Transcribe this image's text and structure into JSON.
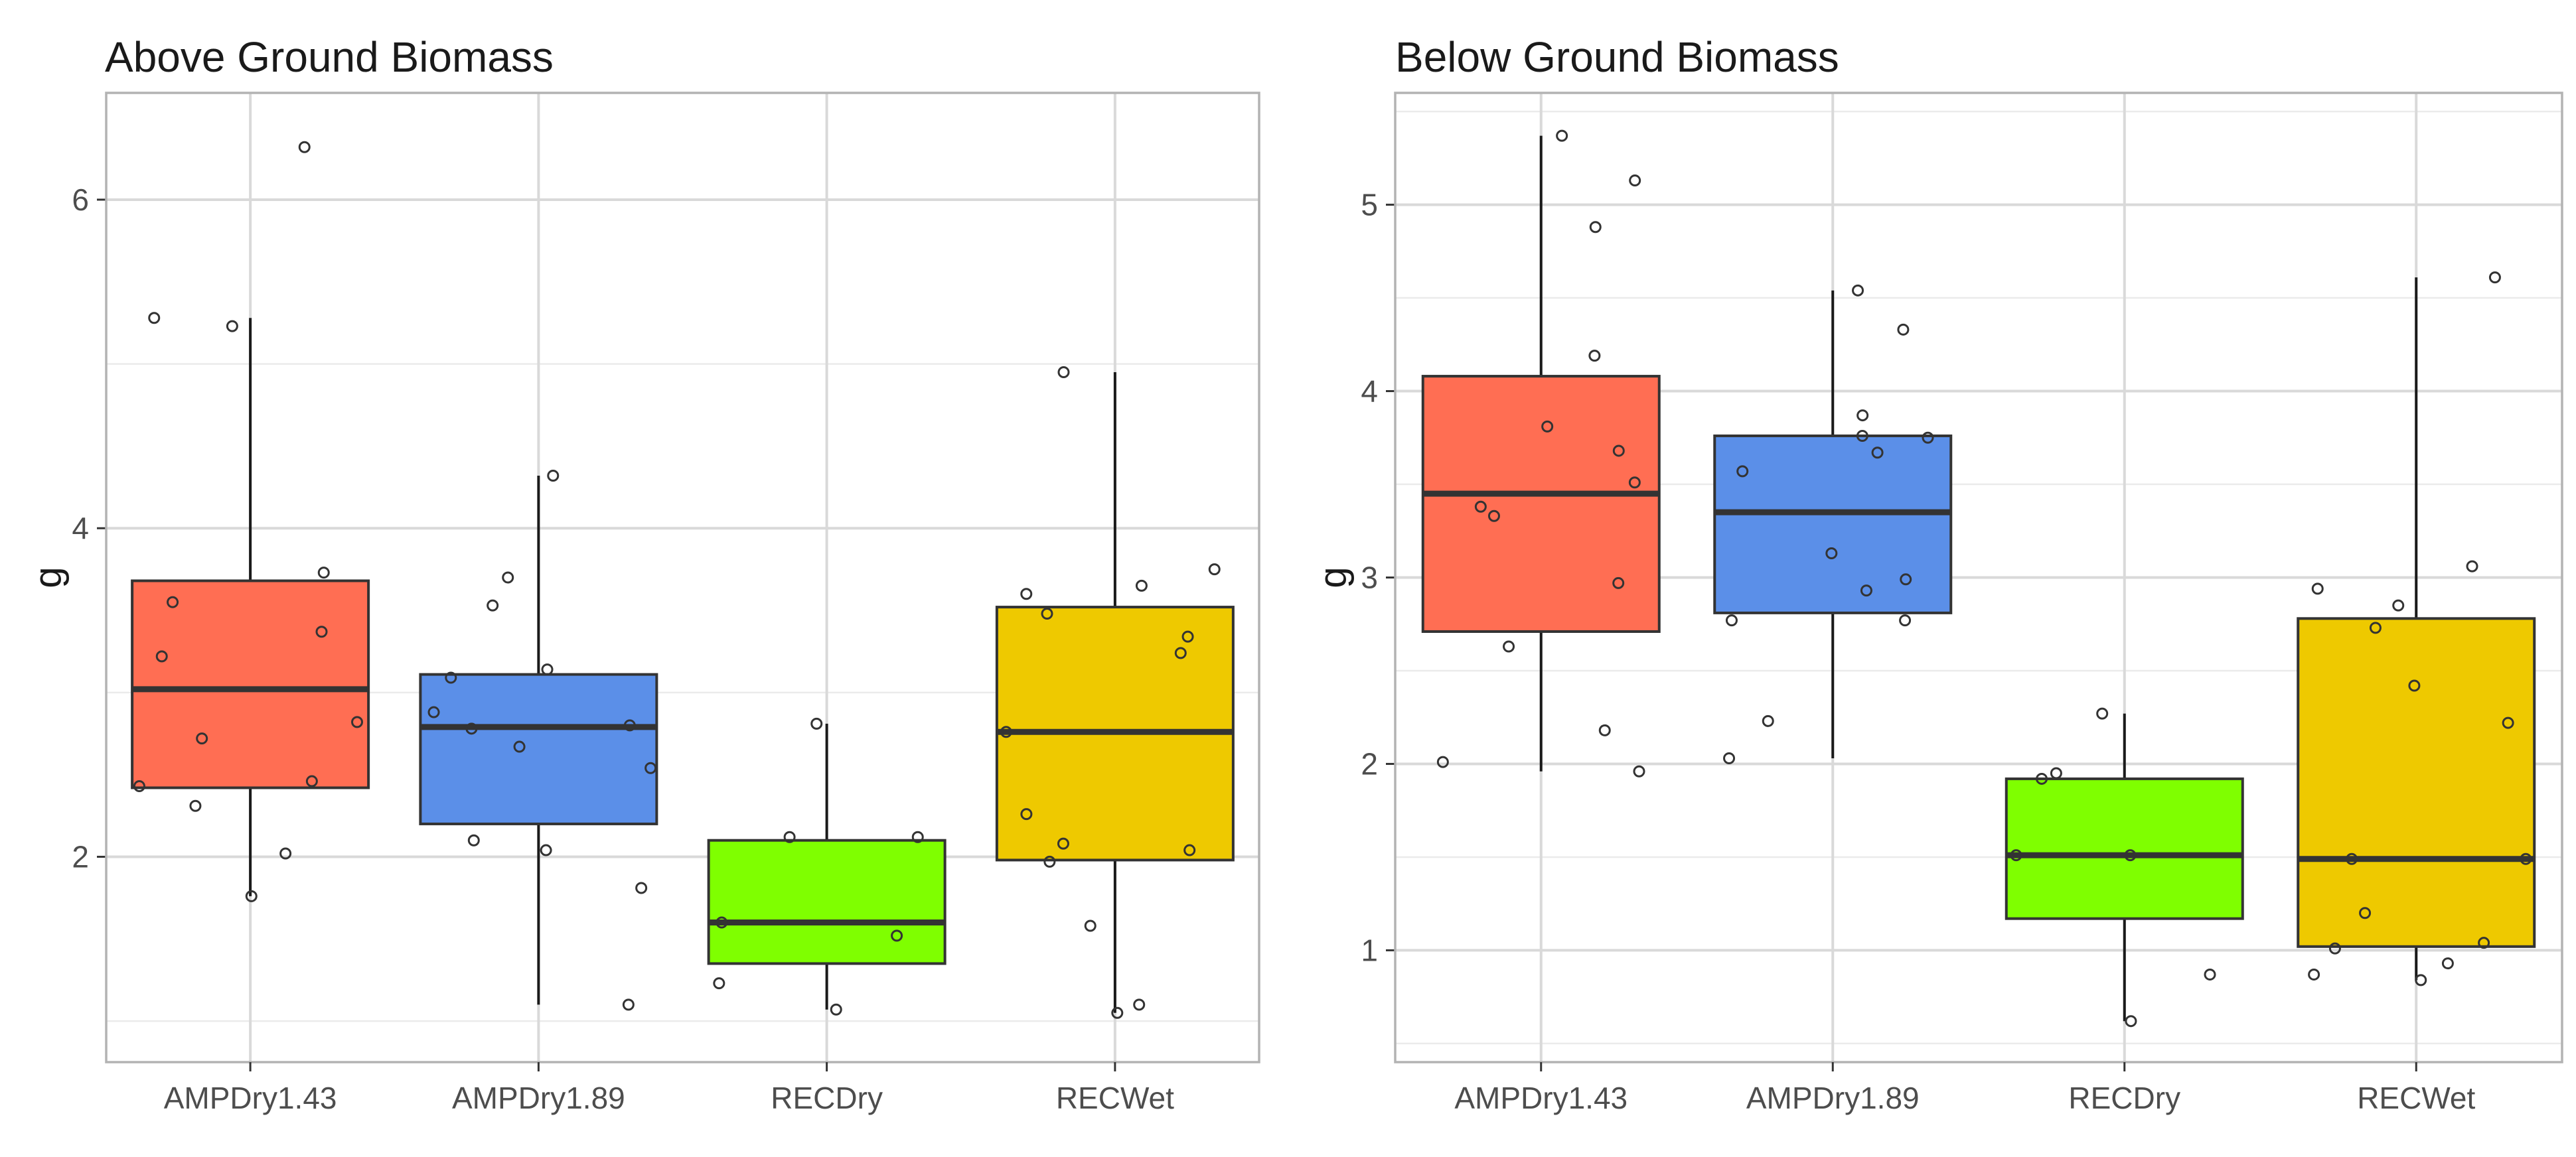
{
  "chart_data": [
    {
      "type": "boxplot",
      "title": "Above Ground Biomass",
      "xlabel": "",
      "ylabel": "g",
      "ylim": [
        0.75,
        6.65
      ],
      "yticks": [
        2,
        4,
        6
      ],
      "categories": [
        "AMPDry1.43",
        "AMPDry1.89",
        "RECDry",
        "RECWet"
      ],
      "colors": [
        "#FF6E53",
        "#5B8FE8",
        "#7FFF00",
        "#EEC900"
      ],
      "boxes": [
        {
          "category": "AMPDry1.43",
          "whisker_low": 1.76,
          "q1": 2.42,
          "median": 3.02,
          "q3": 3.68,
          "whisker_high": 5.28
        },
        {
          "category": "AMPDry1.89",
          "whisker_low": 1.1,
          "q1": 2.2,
          "median": 2.79,
          "q3": 3.11,
          "whisker_high": 4.32
        },
        {
          "category": "RECDry",
          "whisker_low": 1.07,
          "q1": 1.35,
          "median": 1.6,
          "q3": 2.1,
          "whisker_high": 2.81
        },
        {
          "category": "RECWet",
          "whisker_low": 1.05,
          "q1": 1.98,
          "median": 2.76,
          "q3": 3.52,
          "whisker_high": 4.95
        }
      ],
      "points": [
        [
          6.32,
          5.28,
          5.23,
          3.73,
          3.55,
          3.37,
          3.22,
          2.82,
          2.72,
          2.46,
          2.43,
          2.31,
          2.02,
          1.76
        ],
        [
          4.32,
          3.7,
          3.53,
          3.14,
          3.09,
          2.88,
          2.8,
          2.78,
          2.67,
          2.54,
          2.1,
          2.04,
          1.81,
          1.1
        ],
        [
          2.81,
          2.12,
          2.12,
          1.6,
          1.52,
          1.23,
          1.07
        ],
        [
          4.95,
          3.75,
          3.65,
          3.6,
          3.48,
          3.34,
          3.24,
          2.76,
          2.26,
          2.08,
          2.04,
          1.97,
          1.58,
          1.1,
          1.05
        ]
      ]
    },
    {
      "type": "boxplot",
      "title": "Below Ground Biomass",
      "xlabel": "",
      "ylabel": "g",
      "ylim": [
        0.4,
        5.6
      ],
      "yticks": [
        1,
        2,
        3,
        4,
        5
      ],
      "categories": [
        "AMPDry1.43",
        "AMPDry1.89",
        "RECDry",
        "RECWet"
      ],
      "colors": [
        "#FF6E53",
        "#5B8FE8",
        "#7FFF00",
        "#EEC900"
      ],
      "boxes": [
        {
          "category": "AMPDry1.43",
          "whisker_low": 1.96,
          "q1": 2.71,
          "median": 3.45,
          "q3": 4.08,
          "whisker_high": 5.37
        },
        {
          "category": "AMPDry1.89",
          "whisker_low": 2.03,
          "q1": 2.81,
          "median": 3.35,
          "q3": 3.76,
          "whisker_high": 4.54
        },
        {
          "category": "RECDry",
          "whisker_low": 0.62,
          "q1": 1.17,
          "median": 1.51,
          "q3": 1.92,
          "whisker_high": 2.27
        },
        {
          "category": "RECWet",
          "whisker_low": 0.84,
          "q1": 1.02,
          "median": 1.49,
          "q3": 2.78,
          "whisker_high": 4.61
        }
      ],
      "points": [
        [
          5.37,
          5.13,
          4.88,
          4.19,
          3.81,
          3.68,
          3.51,
          3.38,
          3.33,
          2.97,
          2.63,
          2.18,
          2.01,
          1.96
        ],
        [
          4.54,
          4.33,
          3.87,
          3.76,
          3.75,
          3.67,
          3.57,
          3.13,
          2.99,
          2.93,
          2.77,
          2.77,
          2.23,
          2.03
        ],
        [
          2.27,
          1.95,
          1.92,
          1.51,
          1.51,
          0.87,
          0.62
        ],
        [
          4.61,
          3.06,
          2.94,
          2.85,
          2.73,
          2.42,
          2.22,
          1.49,
          1.49,
          1.2,
          1.04,
          1.01,
          0.93,
          0.87,
          0.84
        ]
      ]
    }
  ]
}
